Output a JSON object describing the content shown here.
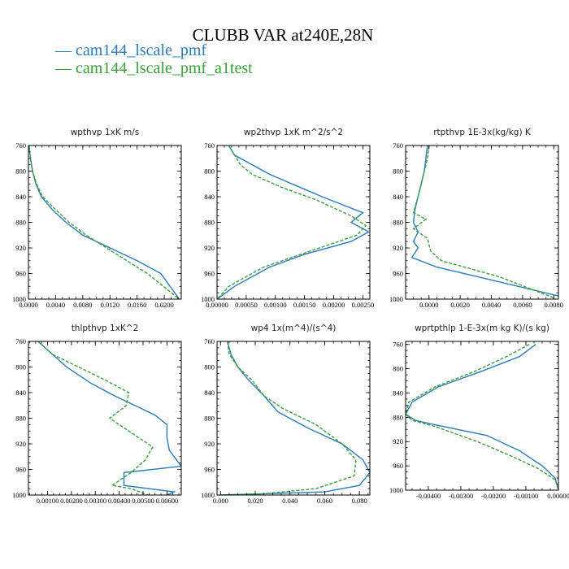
{
  "figure": {
    "title": "CLUBB VAR at240E,28N",
    "legend": [
      {
        "label": "— cam144_lscale_pmf",
        "color": "#2b7bb9"
      },
      {
        "label": "— cam144_lscale_pmf_a1test",
        "color": "#3a9e3a"
      }
    ]
  },
  "colors": {
    "series1": "#2b7bb9",
    "series2": "#3a9e3a"
  },
  "chart_data": [
    {
      "type": "line",
      "title": "wpthvp   1xK m/s",
      "xlim": [
        0.0,
        0.0225
      ],
      "ylim": [
        760,
        1000
      ],
      "xticks": [
        0.0,
        0.004,
        0.008,
        0.012,
        0.016,
        0.02
      ],
      "xtick_labels": [
        "0.0000",
        "0.0040",
        "0.0080",
        "0.0120",
        "0.0160",
        "0.0200"
      ],
      "yticks": [
        760,
        800,
        840,
        880,
        920,
        960,
        1000
      ],
      "ytick_labels": [
        "760",
        "800",
        "840",
        "880",
        "920",
        "960",
        "1000"
      ],
      "series": [
        {
          "name": "cam144_lscale_pmf",
          "x": [
            0.0001,
            0.0003,
            0.0006,
            0.0011,
            0.0019,
            0.0035,
            0.0055,
            0.008,
            0.012,
            0.016,
            0.0195,
            0.0222
          ],
          "y": [
            760,
            780,
            800,
            820,
            840,
            860,
            880,
            900,
            920,
            940,
            960,
            1000
          ]
        },
        {
          "name": "cam144_lscale_pmf_a1test",
          "x": [
            0.0001,
            0.0003,
            0.0006,
            0.0012,
            0.0021,
            0.004,
            0.006,
            0.0085,
            0.0115,
            0.0145,
            0.0175,
            0.0222
          ],
          "y": [
            760,
            780,
            800,
            820,
            840,
            860,
            880,
            900,
            920,
            940,
            960,
            1000
          ]
        }
      ]
    },
    {
      "type": "line",
      "title": "wp2thvp   1xK m^2/s^2",
      "xlim": [
        0.0,
        0.00262
      ],
      "ylim": [
        760,
        1000
      ],
      "xticks": [
        0.0,
        0.0005,
        0.001,
        0.0015,
        0.002,
        0.0025
      ],
      "xtick_labels": [
        "0.00000",
        "0.00050",
        "0.00100",
        "0.00150",
        "0.00200",
        "0.00250"
      ],
      "yticks": [
        760,
        800,
        840,
        880,
        920,
        960,
        1000
      ],
      "ytick_labels": [
        "760",
        "800",
        "840",
        "880",
        "920",
        "960",
        "1000"
      ],
      "series": [
        {
          "name": "cam144_lscale_pmf",
          "x": [
            0.0002,
            0.0003,
            0.0006,
            0.0009,
            0.0018,
            0.0025,
            0.0023,
            0.0026,
            0.0023,
            0.0015,
            0.0009,
            0.0003,
            0.0
          ],
          "y": [
            760,
            775,
            790,
            805,
            840,
            865,
            880,
            895,
            910,
            930,
            950,
            980,
            1000
          ]
        },
        {
          "name": "cam144_lscale_pmf_a1test",
          "x": [
            0.0002,
            0.0003,
            0.0004,
            0.0006,
            0.0011,
            0.0017,
            0.0023,
            0.00255,
            0.0024,
            0.0016,
            0.0008,
            0.0002,
            0.0
          ],
          "y": [
            760,
            775,
            790,
            805,
            825,
            845,
            870,
            885,
            900,
            925,
            950,
            980,
            1000
          ]
        }
      ]
    },
    {
      "type": "line",
      "title": "rtpthvp   1E-3x(kg/kg) K",
      "xlim": [
        -0.0015,
        0.0083
      ],
      "ylim": [
        760,
        1000
      ],
      "xticks": [
        0.0,
        0.002,
        0.004,
        0.006,
        0.008
      ],
      "xtick_labels": [
        "0.0000",
        "0.0020",
        "0.0040",
        "0.0060",
        "0.0080"
      ],
      "yticks": [
        760,
        800,
        840,
        880,
        920,
        960,
        1000
      ],
      "ytick_labels": [
        "760",
        "800",
        "840",
        "880",
        "920",
        "960",
        "1000"
      ],
      "series": [
        {
          "name": "cam144_lscale_pmf",
          "x": [
            -0.0001,
            -0.0002,
            -0.0003,
            -0.0005,
            -0.0007,
            -0.0009,
            -0.001,
            -0.0007,
            -0.001,
            -0.0007,
            -0.0011,
            0.0005,
            0.004,
            0.0083
          ],
          "y": [
            760,
            780,
            800,
            820,
            840,
            860,
            880,
            895,
            910,
            920,
            935,
            950,
            970,
            995
          ]
        },
        {
          "name": "cam144_lscale_pmf_a1test",
          "x": [
            0.0,
            -0.0001,
            -0.0003,
            -0.0005,
            -0.0007,
            -0.001,
            -0.0002,
            -0.001,
            -0.0001,
            0.0001,
            0.0008,
            0.0045,
            0.008
          ],
          "y": [
            760,
            780,
            800,
            820,
            840,
            865,
            875,
            890,
            905,
            925,
            940,
            965,
            998
          ]
        }
      ]
    },
    {
      "type": "line",
      "title": "thlpthvp   1xK^2",
      "xlim": [
        0.0002,
        0.0066
      ],
      "ylim": [
        760,
        1000
      ],
      "xticks": [
        0.001,
        0.002,
        0.003,
        0.004,
        0.005,
        0.006
      ],
      "xtick_labels": [
        "0.00100",
        "0.00200",
        "0.00300",
        "0.00400",
        "0.00500",
        "0.00600"
      ],
      "yticks": [
        760,
        800,
        840,
        880,
        920,
        960,
        1000
      ],
      "ytick_labels": [
        "760",
        "800",
        "840",
        "880",
        "920",
        "960",
        "1000"
      ],
      "series": [
        {
          "name": "cam144_lscale_pmf",
          "x": [
            0.0006,
            0.0012,
            0.0018,
            0.0028,
            0.0038,
            0.0055,
            0.006,
            0.006,
            0.0061,
            0.0066,
            0.0042,
            0.0042,
            0.0063,
            0.006
          ],
          "y": [
            760,
            780,
            800,
            825,
            845,
            875,
            890,
            910,
            930,
            955,
            965,
            985,
            995,
            1000
          ]
        },
        {
          "name": "cam144_lscale_pmf_a1test",
          "x": [
            0.0006,
            0.0012,
            0.0023,
            0.0034,
            0.0044,
            0.0043,
            0.0036,
            0.0046,
            0.0054,
            0.0051,
            0.0045,
            0.0037,
            0.0045,
            0.0052
          ],
          "y": [
            760,
            780,
            800,
            820,
            840,
            860,
            880,
            905,
            925,
            945,
            965,
            985,
            990,
            1000
          ]
        }
      ]
    },
    {
      "type": "line",
      "title": "wp4   1x(m^4)/(s^4)",
      "xlim": [
        -0.002,
        0.086
      ],
      "ylim": [
        760,
        1000
      ],
      "xticks": [
        0.0,
        0.02,
        0.04,
        0.06,
        0.08
      ],
      "xtick_labels": [
        "0.000",
        "0.020",
        "0.040",
        "0.060",
        "0.080"
      ],
      "yticks": [
        760,
        800,
        840,
        880,
        920,
        960,
        1000
      ],
      "ytick_labels": [
        "760",
        "800",
        "840",
        "880",
        "920",
        "960",
        "1000"
      ],
      "series": [
        {
          "name": "cam144_lscale_pmf",
          "x": [
            0.004,
            0.006,
            0.01,
            0.016,
            0.025,
            0.033,
            0.05,
            0.07,
            0.082,
            0.086,
            0.08,
            0.06,
            0.025,
            0.0
          ],
          "y": [
            760,
            780,
            800,
            820,
            845,
            870,
            895,
            920,
            945,
            965,
            985,
            995,
            998,
            1000
          ]
        },
        {
          "name": "cam144_lscale_pmf_a1test",
          "x": [
            0.004,
            0.005,
            0.01,
            0.018,
            0.025,
            0.036,
            0.055,
            0.07,
            0.078,
            0.077,
            0.055,
            0.025,
            0.0
          ],
          "y": [
            760,
            780,
            800,
            820,
            845,
            865,
            890,
            920,
            945,
            970,
            990,
            998,
            1000
          ]
        }
      ]
    },
    {
      "type": "line",
      "title": "wprtpthlp   1-E-3x(m kg K)/(s kg)",
      "xlim": [
        -0.0047,
        0.0
      ],
      "ylim": [
        755,
        1000
      ],
      "xticks": [
        -0.004,
        -0.003,
        -0.002,
        -0.001,
        0.0
      ],
      "xtick_labels": [
        "-0.00400",
        "-0.00300",
        "-0.00200",
        "-0.00100",
        "0.00000"
      ],
      "yticks": [
        760,
        800,
        840,
        880,
        920,
        960,
        1000
      ],
      "ytick_labels": [
        "760",
        "800",
        "840",
        "880",
        "920",
        "960",
        "1000"
      ],
      "series": [
        {
          "name": "cam144_lscale_pmf",
          "x": [
            -0.0007,
            -0.0012,
            -0.0024,
            -0.0037,
            -0.0045,
            -0.0047,
            -0.0044,
            -0.004,
            -0.0022,
            -0.0012,
            -0.0005,
            -0.0001,
            0.0
          ],
          "y": [
            760,
            780,
            805,
            830,
            855,
            875,
            885,
            890,
            910,
            935,
            960,
            980,
            1000
          ]
        },
        {
          "name": "cam144_lscale_pmf_a1test",
          "x": [
            -0.0009,
            -0.0016,
            -0.0026,
            -0.0038,
            -0.0046,
            -0.0047,
            -0.0045,
            -0.0038,
            -0.0025,
            -0.0014,
            -0.0006,
            -0.0001,
            0.0
          ],
          "y": [
            760,
            780,
            805,
            830,
            855,
            875,
            885,
            895,
            920,
            945,
            965,
            983,
            1000
          ]
        }
      ]
    }
  ]
}
